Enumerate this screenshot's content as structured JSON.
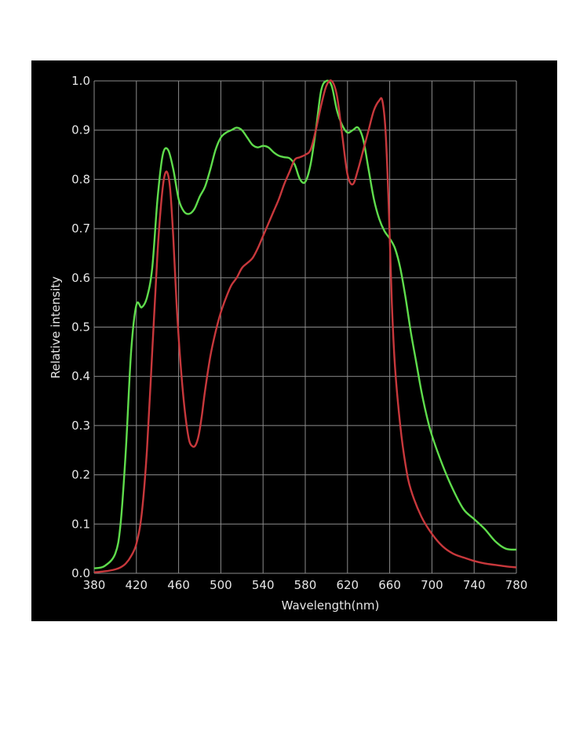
{
  "chart_data": {
    "type": "line",
    "title": "",
    "xlabel": "Wavelength(nm)",
    "ylabel": "Relative intensity",
    "xlim": [
      380,
      780
    ],
    "ylim": [
      0.0,
      1.0
    ],
    "xticks": [
      "380",
      "420",
      "460",
      "500",
      "540",
      "580",
      "620",
      "660",
      "700",
      "740",
      "780"
    ],
    "yticks": [
      "0.0",
      "0.1",
      "0.2",
      "0.3",
      "0.4",
      "0.5",
      "0.6",
      "0.7",
      "0.8",
      "0.9",
      "1.0"
    ],
    "grid": true,
    "colors": {
      "background": "#000000",
      "grid": "#8c8c8c",
      "text": "#e6e6e6"
    },
    "series": [
      {
        "color": "#5fdc4c",
        "x": [
          380,
          390,
          400,
          405,
          410,
          415,
          420,
          425,
          430,
          435,
          440,
          445,
          450,
          455,
          460,
          465,
          470,
          475,
          480,
          485,
          490,
          495,
          500,
          505,
          510,
          515,
          520,
          525,
          530,
          535,
          540,
          545,
          550,
          555,
          560,
          565,
          570,
          575,
          580,
          585,
          590,
          595,
          600,
          605,
          610,
          615,
          620,
          625,
          630,
          635,
          640,
          645,
          650,
          655,
          660,
          665,
          670,
          675,
          680,
          685,
          690,
          695,
          700,
          710,
          720,
          730,
          740,
          750,
          760,
          770,
          780
        ],
        "y": [
          0.01,
          0.015,
          0.04,
          0.1,
          0.25,
          0.45,
          0.545,
          0.54,
          0.56,
          0.62,
          0.76,
          0.85,
          0.86,
          0.82,
          0.76,
          0.735,
          0.73,
          0.74,
          0.765,
          0.785,
          0.82,
          0.86,
          0.885,
          0.895,
          0.9,
          0.905,
          0.9,
          0.885,
          0.87,
          0.865,
          0.868,
          0.865,
          0.855,
          0.848,
          0.845,
          0.843,
          0.83,
          0.8,
          0.795,
          0.83,
          0.9,
          0.98,
          1.0,
          0.99,
          0.94,
          0.91,
          0.895,
          0.9,
          0.905,
          0.88,
          0.82,
          0.76,
          0.72,
          0.695,
          0.68,
          0.66,
          0.62,
          0.56,
          0.49,
          0.43,
          0.37,
          0.32,
          0.28,
          0.22,
          0.17,
          0.13,
          0.11,
          0.09,
          0.065,
          0.05,
          0.048
        ]
      },
      {
        "color": "#c8383c",
        "x": [
          380,
          390,
          400,
          405,
          410,
          415,
          420,
          425,
          430,
          435,
          440,
          443,
          446,
          449,
          452,
          455,
          458,
          461,
          464,
          467,
          470,
          473,
          476,
          479,
          482,
          485,
          490,
          495,
          500,
          505,
          510,
          515,
          520,
          525,
          530,
          535,
          540,
          545,
          550,
          555,
          560,
          565,
          570,
          575,
          580,
          585,
          590,
          595,
          600,
          605,
          610,
          615,
          620,
          625,
          630,
          635,
          640,
          645,
          650,
          653,
          656,
          659,
          662,
          665,
          670,
          675,
          680,
          690,
          700,
          710,
          720,
          730,
          740,
          750,
          760,
          770,
          780
        ],
        "y": [
          0.002,
          0.004,
          0.008,
          0.012,
          0.02,
          0.035,
          0.06,
          0.12,
          0.25,
          0.45,
          0.65,
          0.74,
          0.8,
          0.815,
          0.78,
          0.68,
          0.55,
          0.45,
          0.37,
          0.31,
          0.27,
          0.258,
          0.26,
          0.28,
          0.32,
          0.37,
          0.44,
          0.49,
          0.53,
          0.56,
          0.585,
          0.6,
          0.62,
          0.63,
          0.64,
          0.66,
          0.685,
          0.71,
          0.735,
          0.76,
          0.79,
          0.815,
          0.84,
          0.845,
          0.85,
          0.86,
          0.9,
          0.95,
          0.99,
          1.0,
          0.97,
          0.89,
          0.81,
          0.79,
          0.82,
          0.86,
          0.9,
          0.94,
          0.96,
          0.96,
          0.9,
          0.75,
          0.55,
          0.42,
          0.3,
          0.22,
          0.17,
          0.115,
          0.08,
          0.055,
          0.04,
          0.032,
          0.025,
          0.02,
          0.017,
          0.014,
          0.012
        ]
      }
    ]
  }
}
